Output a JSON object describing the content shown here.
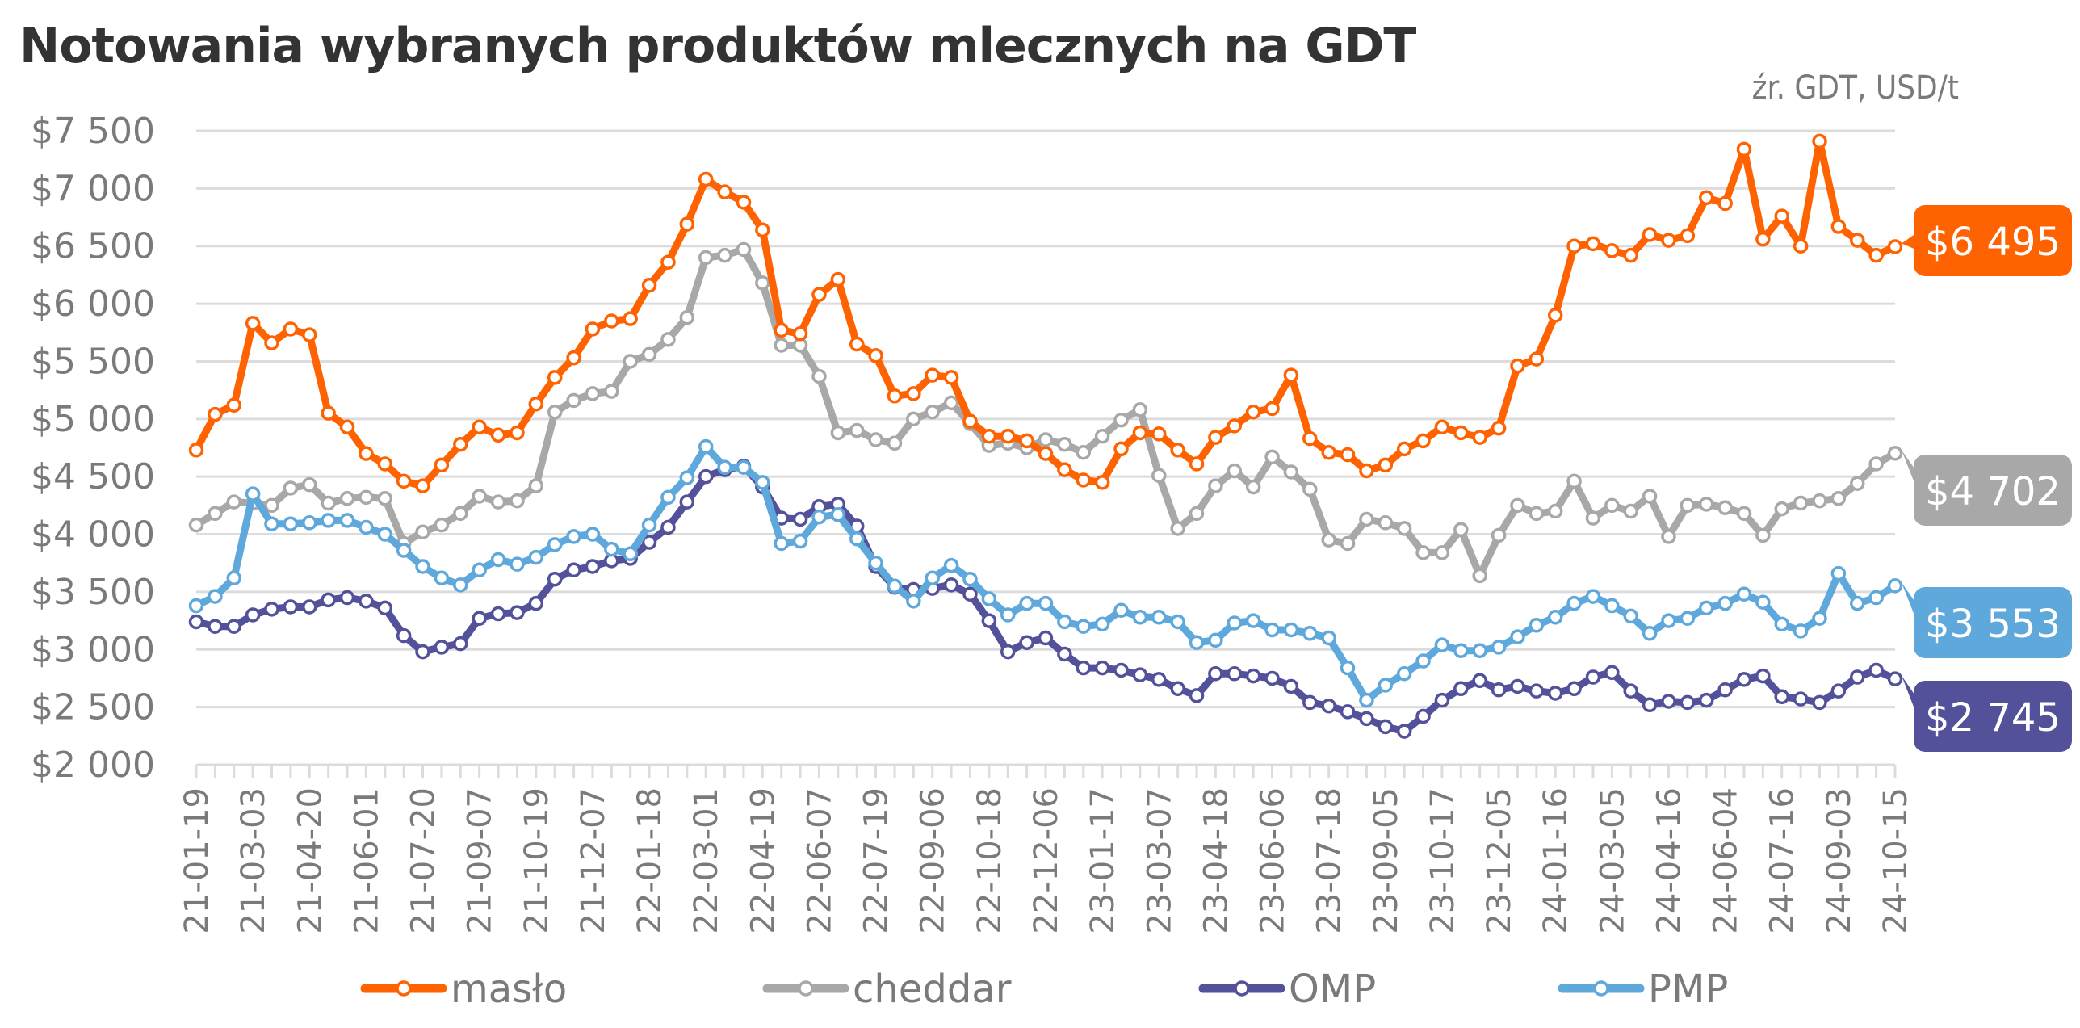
{
  "chart_data": {
    "type": "line",
    "title": "Notowania wybranych produktów mlecznych na GDT",
    "source_note": "źr. GDT, USD/t",
    "xlabel": "",
    "ylabel": "",
    "ylim": [
      2000,
      7500
    ],
    "yticks": [
      2000,
      2500,
      3000,
      3500,
      4000,
      4500,
      5000,
      5500,
      6000,
      6500,
      7000,
      7500
    ],
    "ytick_labels": [
      "$2 000",
      "$2 500",
      "$3 000",
      "$3 500",
      "$4 000",
      "$4 500",
      "$5 000",
      "$5 500",
      "$6 000",
      "$6 500",
      "$7 000",
      "$7 500"
    ],
    "grid": true,
    "legend_position": "bottom",
    "x_tick_labels": [
      "21-01-19",
      "21-03-03",
      "21-04-20",
      "21-06-01",
      "21-07-20",
      "21-09-07",
      "21-10-19",
      "21-12-07",
      "22-01-18",
      "22-03-01",
      "22-04-19",
      "22-06-07",
      "22-07-19",
      "22-09-06",
      "22-10-18",
      "22-12-06",
      "23-01-17",
      "23-03-07",
      "23-04-18",
      "23-06-06",
      "23-07-18",
      "23-09-05",
      "23-10-17",
      "23-12-05",
      "24-01-16",
      "24-03-05",
      "24-04-16",
      "24-06-04",
      "24-07-16",
      "24-09-03",
      "24-10-15"
    ],
    "x_tick_label_every": 3,
    "series": [
      {
        "name": "masło",
        "color": "#FF6200",
        "last_value_label": "$6 495",
        "values": [
          4730,
          5040,
          5120,
          5830,
          5660,
          5780,
          5730,
          5050,
          4930,
          4700,
          4610,
          4460,
          4420,
          4600,
          4780,
          4930,
          4860,
          4880,
          5130,
          5360,
          5530,
          5780,
          5850,
          5870,
          6160,
          6360,
          6690,
          7080,
          6970,
          6880,
          6640,
          5770,
          5740,
          6080,
          6210,
          5650,
          5550,
          5200,
          5220,
          5380,
          5360,
          4980,
          4850,
          4850,
          4810,
          4700,
          4560,
          4470,
          4450,
          4740,
          4880,
          4870,
          4730,
          4610,
          4840,
          4940,
          5060,
          5090,
          5380,
          4830,
          4710,
          4690,
          4550,
          4600,
          4740,
          4810,
          4930,
          4880,
          4840,
          4920,
          5460,
          5520,
          5900,
          6500,
          6520,
          6460,
          6420,
          6600,
          6550,
          6590,
          6920,
          6870,
          7340,
          6560,
          6760,
          6500,
          7410,
          6670,
          6550,
          6420,
          6495
        ]
      },
      {
        "name": "cheddar",
        "color": "#A8A8A8",
        "last_value_label": "$4 702",
        "values": [
          4080,
          4180,
          4280,
          4270,
          4250,
          4400,
          4430,
          4270,
          4310,
          4320,
          4310,
          3920,
          4020,
          4080,
          4180,
          4330,
          4280,
          4290,
          4420,
          5060,
          5160,
          5220,
          5240,
          5500,
          5560,
          5690,
          5880,
          6400,
          6420,
          6470,
          6180,
          5640,
          5640,
          5370,
          4880,
          4900,
          4820,
          4790,
          5000,
          5060,
          5140,
          4960,
          4770,
          4790,
          4750,
          4820,
          4780,
          4710,
          4850,
          4990,
          5080,
          4510,
          4050,
          4180,
          4420,
          4550,
          4410,
          4670,
          4540,
          4390,
          3950,
          3920,
          4130,
          4100,
          4050,
          3840,
          3840,
          4040,
          3640,
          3990,
          4250,
          4180,
          4200,
          4460,
          4140,
          4250,
          4200,
          4330,
          3980,
          4250,
          4260,
          4230,
          4180,
          3990,
          4220,
          4270,
          4290,
          4310,
          4440,
          4610,
          4702
        ]
      },
      {
        "name": "OMP",
        "color": "#525199",
        "last_value_label": "$2 745",
        "values": [
          3240,
          3200,
          3200,
          3300,
          3350,
          3370,
          3370,
          3430,
          3450,
          3420,
          3360,
          3120,
          2980,
          3020,
          3050,
          3270,
          3310,
          3320,
          3400,
          3610,
          3690,
          3720,
          3770,
          3790,
          3930,
          4060,
          4280,
          4500,
          4560,
          4590,
          4410,
          4140,
          4130,
          4240,
          4260,
          4070,
          3720,
          3540,
          3520,
          3530,
          3560,
          3480,
          3250,
          2980,
          3060,
          3100,
          2960,
          2840,
          2840,
          2820,
          2780,
          2740,
          2660,
          2600,
          2790,
          2790,
          2770,
          2750,
          2680,
          2540,
          2510,
          2460,
          2400,
          2330,
          2290,
          2420,
          2560,
          2660,
          2730,
          2650,
          2680,
          2640,
          2620,
          2660,
          2760,
          2800,
          2640,
          2520,
          2550,
          2540,
          2560,
          2650,
          2740,
          2770,
          2590,
          2570,
          2540,
          2640,
          2760,
          2820,
          2745
        ]
      },
      {
        "name": "PMP",
        "color": "#5FA8DC",
        "last_value_label": "$3 553",
        "values": [
          3380,
          3460,
          3620,
          4350,
          4090,
          4090,
          4100,
          4120,
          4120,
          4060,
          4000,
          3860,
          3720,
          3620,
          3560,
          3690,
          3780,
          3740,
          3800,
          3910,
          3980,
          4000,
          3870,
          3830,
          4080,
          4320,
          4490,
          4760,
          4580,
          4580,
          4450,
          3920,
          3940,
          4150,
          4170,
          3960,
          3750,
          3550,
          3420,
          3620,
          3730,
          3610,
          3440,
          3300,
          3400,
          3400,
          3240,
          3200,
          3220,
          3340,
          3280,
          3280,
          3240,
          3060,
          3080,
          3230,
          3250,
          3170,
          3170,
          3140,
          3100,
          2840,
          2560,
          2690,
          2790,
          2900,
          3040,
          2990,
          2990,
          3020,
          3110,
          3210,
          3280,
          3400,
          3460,
          3380,
          3290,
          3140,
          3250,
          3270,
          3360,
          3400,
          3480,
          3410,
          3220,
          3160,
          3270,
          3660,
          3400,
          3450,
          3553
        ]
      }
    ]
  }
}
